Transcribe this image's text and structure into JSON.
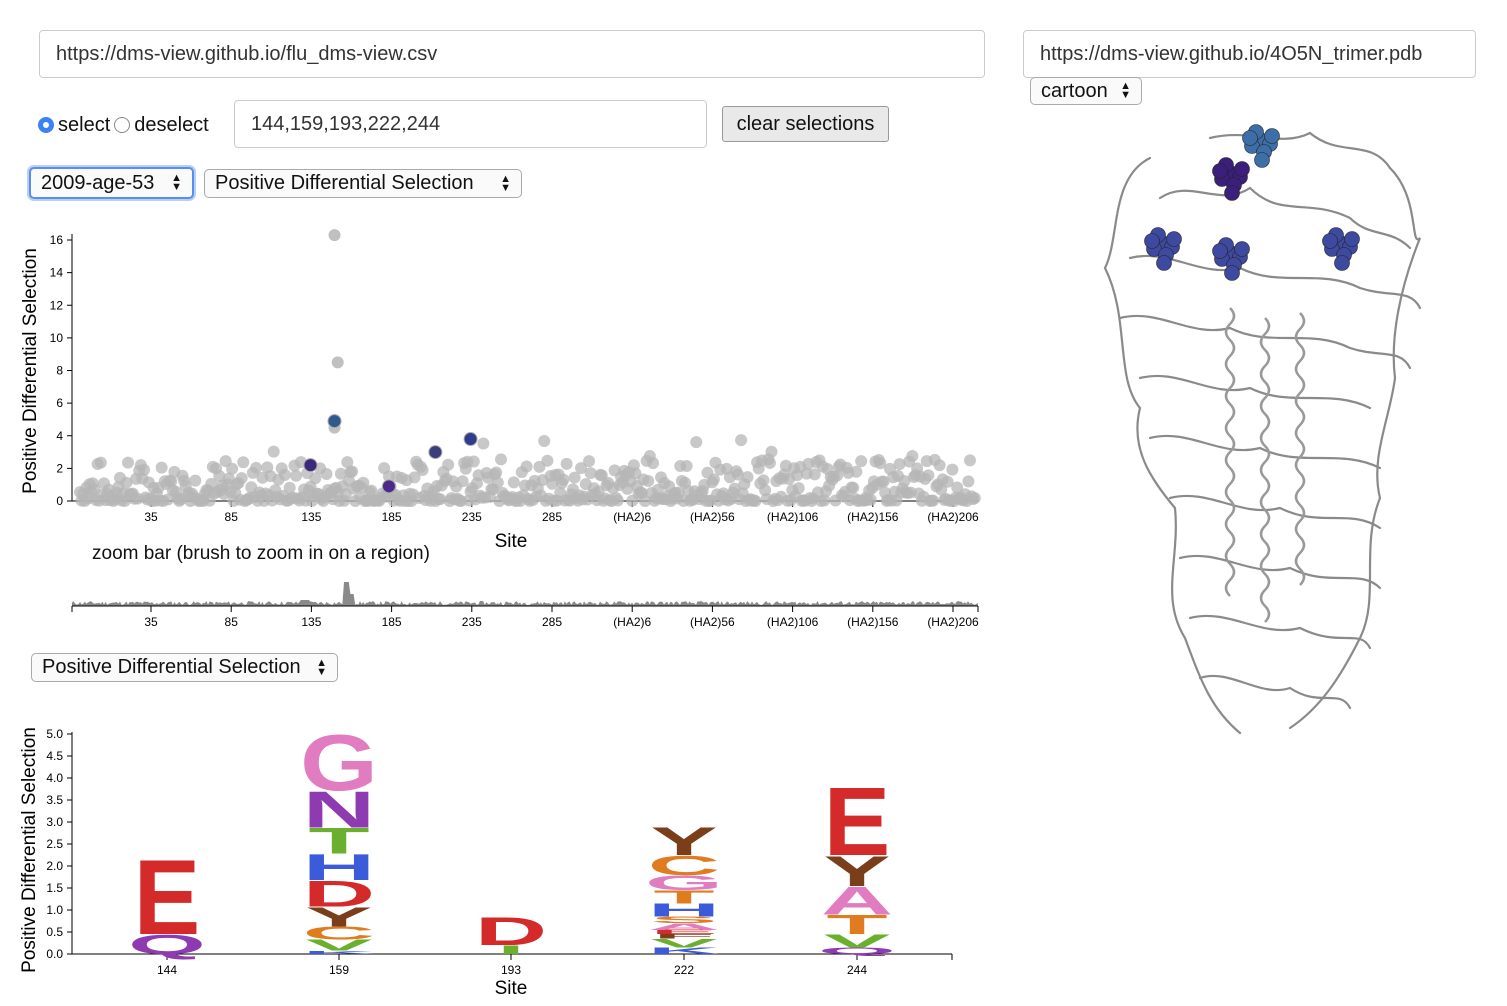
{
  "data_url": "https://dms-view.github.io/flu_dms-view.csv",
  "pdb_url": "https://dms-view.github.io/4O5N_trimer.pdb",
  "representation": "cartoon",
  "mode": {
    "select_label": "select",
    "deselect_label": "deselect",
    "selected": "select"
  },
  "site_input_value": "144,159,193,222,244",
  "clear_button_label": "clear selections",
  "condition_select": "2009-age-53",
  "metric_select": "Positive Differential Selection",
  "logo_metric_select": "Positive Differential Selection",
  "zoom_label": "zoom bar (brush to zoom in on a region)",
  "chart_data": [
    {
      "type": "scatter",
      "ylabel": "Positive Differential Selection",
      "xlabel": "Site",
      "ylim": [
        0,
        16
      ],
      "yticks": [
        "0",
        "2",
        "4",
        "6",
        "8",
        "10",
        "12",
        "14",
        "16"
      ],
      "xtick_labels": [
        "35",
        "85",
        "135",
        "185",
        "235",
        "285",
        "(HA2)6",
        "(HA2)56",
        "(HA2)106",
        "(HA2)156",
        "(HA2)206"
      ],
      "highlighted_points": [
        {
          "site": 144,
          "y": 2.2,
          "color": "#3d2a7a"
        },
        {
          "site": 159,
          "y": 4.9,
          "color": "#2e5a8c"
        },
        {
          "site": 193,
          "y": 0.9,
          "color": "#4b2a8a"
        },
        {
          "site": 222,
          "y": 3.0,
          "color": "#3a3e7a"
        },
        {
          "site": 244,
          "y": 3.8,
          "color": "#2f3d8c"
        }
      ],
      "notable_points": [
        {
          "site": 159,
          "y": 16.3
        },
        {
          "site": 161,
          "y": 8.5
        },
        {
          "site": 159,
          "y": 4.5
        }
      ]
    },
    {
      "type": "area",
      "xtick_labels": [
        "35",
        "85",
        "135",
        "185",
        "235",
        "285",
        "(HA2)6",
        "(HA2)56",
        "(HA2)106",
        "(HA2)156",
        "(HA2)206"
      ]
    },
    {
      "type": "logo",
      "ylabel": "Positive Differential Selection",
      "xlabel": "Site",
      "ylim": [
        0,
        5.0
      ],
      "yticks": [
        "0.0",
        "0.5",
        "1.0",
        "1.5",
        "2.0",
        "2.5",
        "3.0",
        "3.5",
        "4.0",
        "4.5",
        "5.0"
      ],
      "sites": [
        {
          "site": "144",
          "letters": [
            {
              "aa": "Q",
              "value": 0.45,
              "color": "#8e3ab0"
            },
            {
              "aa": "E",
              "value": 1.75,
              "color": "#d42a2a"
            }
          ]
        },
        {
          "site": "159",
          "letters": [
            {
              "aa": "K",
              "value": 0.08,
              "color": "#3b5bdb"
            },
            {
              "aa": "V",
              "value": 0.25,
              "color": "#6ab02e"
            },
            {
              "aa": "C",
              "value": 0.3,
              "color": "#e07b20"
            },
            {
              "aa": "Y",
              "value": 0.45,
              "color": "#7a3e1a"
            },
            {
              "aa": "D",
              "value": 0.6,
              "color": "#d42a2a"
            },
            {
              "aa": "H",
              "value": 0.6,
              "color": "#3b5bdb"
            },
            {
              "aa": "T",
              "value": 0.6,
              "color": "#6ab02e"
            },
            {
              "aa": "N",
              "value": 0.85,
              "color": "#8e3ab0"
            },
            {
              "aa": "G",
              "value": 1.3,
              "color": "#e07cbf"
            }
          ]
        },
        {
          "site": "193",
          "letters": [
            {
              "aa": "I",
              "value": 0.2,
              "color": "#6ab02e"
            },
            {
              "aa": "D",
              "value": 0.65,
              "color": "#d42a2a"
            }
          ]
        },
        {
          "site": "222",
          "letters": [
            {
              "aa": "K",
              "value": 0.15,
              "color": "#3b5bdb"
            },
            {
              "aa": "V",
              "value": 0.2,
              "color": "#6ab02e"
            },
            {
              "aa": "F",
              "value": 0.1,
              "color": "#7a3e1a"
            },
            {
              "aa": "E",
              "value": 0.1,
              "color": "#d42a2a"
            },
            {
              "aa": "A",
              "value": 0.15,
              "color": "#e07cbf"
            },
            {
              "aa": "S",
              "value": 0.15,
              "color": "#e07b20"
            },
            {
              "aa": "H",
              "value": 0.3,
              "color": "#3b5bdb"
            },
            {
              "aa": "T",
              "value": 0.3,
              "color": "#e07b20"
            },
            {
              "aa": "G",
              "value": 0.35,
              "color": "#e07cbf"
            },
            {
              "aa": "C",
              "value": 0.45,
              "color": "#e07b20"
            },
            {
              "aa": "Y",
              "value": 0.65,
              "color": "#7a3e1a"
            }
          ]
        },
        {
          "site": "244",
          "letters": [
            {
              "aa": "Q",
              "value": 0.15,
              "color": "#8e3ab0"
            },
            {
              "aa": "V",
              "value": 0.3,
              "color": "#6ab02e"
            },
            {
              "aa": "T",
              "value": 0.45,
              "color": "#e07b20"
            },
            {
              "aa": "A",
              "value": 0.65,
              "color": "#e07cbf"
            },
            {
              "aa": "Y",
              "value": 0.7,
              "color": "#7a3e1a"
            },
            {
              "aa": "E",
              "value": 1.6,
              "color": "#d42a2a"
            }
          ]
        }
      ]
    }
  ],
  "structure_highlight_colors": [
    "#3d4aa0",
    "#3c1f7a",
    "#3e6ea8"
  ]
}
